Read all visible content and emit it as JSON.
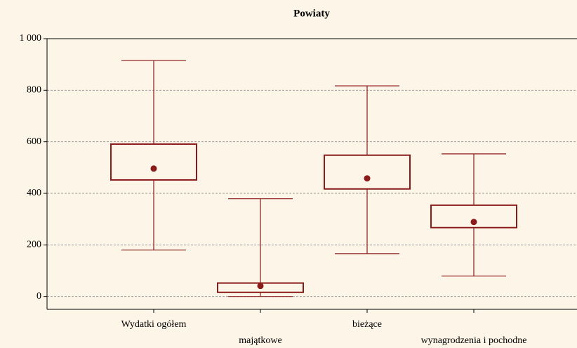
{
  "chart_data": {
    "type": "box",
    "title": "Powiaty",
    "categories": [
      "Wydatki ogółem",
      "majątkowe",
      "bieżące",
      "wynagrodzenia i pochodne"
    ],
    "color": "#8b1a1a",
    "min": [
      180,
      0,
      166,
      79
    ],
    "q1": [
      452,
      16,
      417,
      267
    ],
    "median": [
      496,
      41,
      458,
      289
    ],
    "q3": [
      591,
      52,
      548,
      354
    ],
    "max": [
      915,
      379,
      817,
      553
    ],
    "ylim": [
      -50,
      1000
    ],
    "yticks": [
      0,
      200,
      400,
      600,
      800,
      {
        "value": 1000,
        "label": "1 000"
      }
    ],
    "grid": true
  }
}
